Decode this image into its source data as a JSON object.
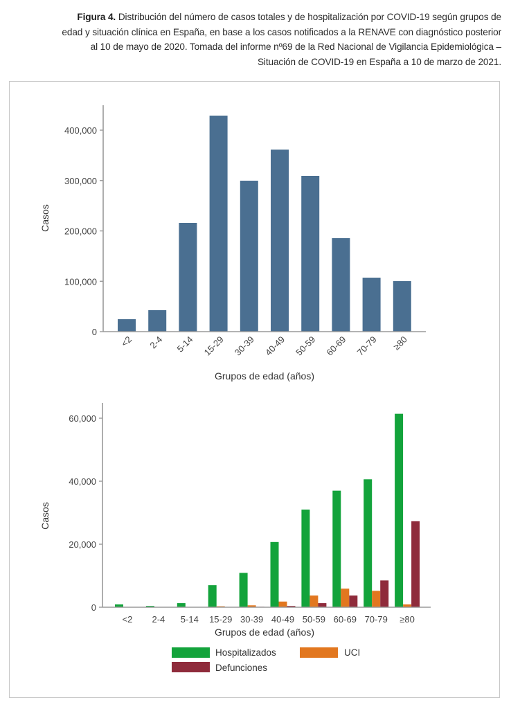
{
  "caption": {
    "label": "Figura 4.",
    "text": "Distribución del número de casos totales y de hospitalización por COVID-19 según grupos de edad y situación clínica en España, en base a los casos notificados a la RENAVE con diagnóstico posterior al 10 de mayo de 2020. Tomada del informe nº69 de la Red Nacional de Vigilancia Epidemiológica – Situación de COVID-19 en España a 10 de marzo de 2021."
  },
  "colors": {
    "total": "#4a6f91",
    "hospitalizados": "#13a33b",
    "uci": "#e2771f",
    "defunciones": "#8f2b3b",
    "axis": "#9a9a9a"
  },
  "chart_data": [
    {
      "type": "bar",
      "title": "",
      "xlabel": "Grupos de edad (años)",
      "ylabel": "Casos",
      "ylim": [
        0,
        450000
      ],
      "yticks": [
        0,
        100000,
        200000,
        300000,
        400000
      ],
      "ytick_labels": [
        "0",
        "100,000",
        "200,000",
        "300,000",
        "400,000"
      ],
      "categories": [
        "<2",
        "2-4",
        "5-14",
        "15-29",
        "30-39",
        "40-49",
        "50-59",
        "60-69",
        "70-79",
        "≥80"
      ],
      "values": [
        24700,
        42600,
        215800,
        428900,
        299700,
        361500,
        309300,
        185600,
        107200,
        100300
      ],
      "grid": false,
      "xtick_rotation": "diagonal"
    },
    {
      "type": "bar",
      "title": "",
      "xlabel": "Grupos de edad (años)",
      "ylabel": "Casos",
      "ylim": [
        0,
        65000
      ],
      "yticks": [
        0,
        20000,
        40000,
        60000
      ],
      "ytick_labels": [
        "0",
        "20,000",
        "40,000",
        "60,000"
      ],
      "categories": [
        "<2",
        "2-4",
        "5-14",
        "15-29",
        "30-39",
        "40-49",
        "50-59",
        "60-69",
        "70-79",
        "≥80"
      ],
      "series": [
        {
          "name": "Hospitalizados",
          "values": [
            900,
            400,
            1300,
            7000,
            10900,
            20700,
            31000,
            37000,
            40600,
            61400
          ]
        },
        {
          "name": "UCI",
          "values": [
            30,
            20,
            30,
            300,
            600,
            1800,
            3700,
            5900,
            5200,
            900
          ]
        },
        {
          "name": "Defunciones",
          "values": [
            5,
            3,
            5,
            50,
            150,
            400,
            1300,
            3700,
            8500,
            27300
          ]
        }
      ],
      "legend": {
        "position": "bottom",
        "entries": [
          "Hospitalizados",
          "UCI",
          "Defunciones"
        ]
      },
      "grid": false
    }
  ]
}
